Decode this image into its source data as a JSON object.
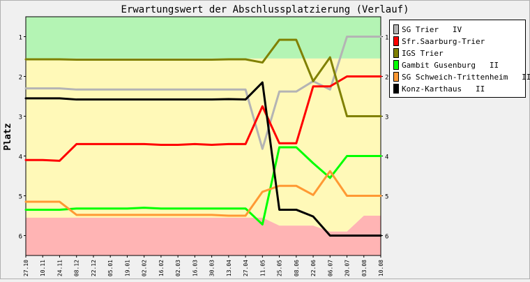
{
  "chart_data": {
    "type": "line",
    "title": "Erwartungswert der Abschlussplatzierung (Verlauf)",
    "xlabel": "",
    "ylabel": "Platz",
    "ylim": [
      0.5,
      6.5
    ],
    "y_inverted": true,
    "yticks": [
      1,
      2,
      3,
      4,
      5,
      6
    ],
    "legend_position": "top-right",
    "x": [
      "27.10",
      "10.11",
      "24.11",
      "08.12",
      "22.12",
      "05.01",
      "19.01",
      "02.02",
      "16.02",
      "02.03",
      "16.03",
      "30.03",
      "13.04",
      "27.04",
      "11.05",
      "25.05",
      "08.06",
      "22.06",
      "06.07",
      "20.07",
      "03.08",
      "10.08"
    ],
    "bands": [
      {
        "color": "#b4f4b4",
        "from": 0.5,
        "to": [
          1.55,
          1.55,
          1.55,
          1.55,
          1.55,
          1.55,
          1.55,
          1.55,
          1.55,
          1.55,
          1.55,
          1.55,
          1.55,
          1.55,
          1.55,
          1.55,
          1.55,
          1.55,
          1.55,
          1.55,
          1.55,
          1.55
        ]
      },
      {
        "color": "#fff9b8",
        "from": "prev",
        "to": [
          5.55,
          5.55,
          5.55,
          5.55,
          5.55,
          5.55,
          5.55,
          5.55,
          5.55,
          5.55,
          5.55,
          5.55,
          5.55,
          5.55,
          5.55,
          5.75,
          5.75,
          5.75,
          5.9,
          5.9,
          5.5,
          5.5
        ]
      },
      {
        "color": "#ffb4b4",
        "from": "prev",
        "to": 6.5
      }
    ],
    "series": [
      {
        "name": "SG Trier   IV",
        "color": "#b4b4b4",
        "values": [
          2.3,
          2.3,
          2.3,
          2.33,
          2.33,
          2.33,
          2.33,
          2.33,
          2.33,
          2.33,
          2.33,
          2.33,
          2.33,
          2.33,
          3.82,
          2.38,
          2.38,
          2.12,
          2.33,
          1.0,
          1.0,
          1.0
        ]
      },
      {
        "name": "Sfr.Saarburg-Trier",
        "color": "#ff0000",
        "values": [
          4.1,
          4.1,
          4.12,
          3.7,
          3.7,
          3.7,
          3.7,
          3.7,
          3.72,
          3.72,
          3.7,
          3.72,
          3.7,
          3.7,
          2.75,
          3.68,
          3.68,
          2.25,
          2.25,
          2.0,
          2.0,
          2.0
        ]
      },
      {
        "name": "IGS Trier",
        "color": "#808000",
        "values": [
          1.57,
          1.57,
          1.57,
          1.58,
          1.58,
          1.58,
          1.58,
          1.58,
          1.58,
          1.58,
          1.58,
          1.58,
          1.57,
          1.57,
          1.65,
          1.08,
          1.08,
          2.12,
          1.52,
          3.0,
          3.0,
          3.0
        ]
      },
      {
        "name": "Gambit Gusenburg   II",
        "color": "#00ff00",
        "values": [
          5.35,
          5.35,
          5.35,
          5.32,
          5.32,
          5.32,
          5.32,
          5.3,
          5.32,
          5.32,
          5.32,
          5.32,
          5.32,
          5.32,
          5.72,
          3.78,
          3.78,
          4.18,
          4.55,
          4.0,
          4.0,
          4.0
        ]
      },
      {
        "name": "SG Schweich-Trittenheim   III",
        "color": "#ff9933",
        "values": [
          5.15,
          5.15,
          5.15,
          5.48,
          5.48,
          5.48,
          5.48,
          5.48,
          5.48,
          5.48,
          5.48,
          5.48,
          5.5,
          5.5,
          4.9,
          4.75,
          4.75,
          4.98,
          4.38,
          5.0,
          5.0,
          5.0
        ]
      },
      {
        "name": "Konz-Karthaus   II",
        "color": "#000000",
        "values": [
          2.55,
          2.55,
          2.55,
          2.58,
          2.58,
          2.58,
          2.58,
          2.58,
          2.58,
          2.58,
          2.58,
          2.58,
          2.57,
          2.58,
          2.15,
          5.35,
          5.35,
          5.52,
          6.0,
          6.0,
          6.0,
          6.0
        ]
      }
    ]
  }
}
